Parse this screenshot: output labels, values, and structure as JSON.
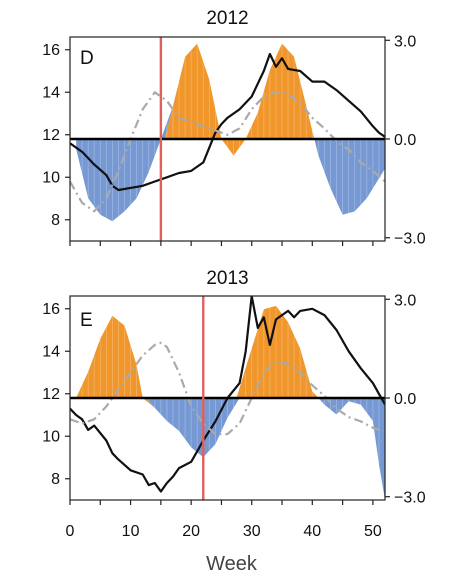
{
  "chart_data": [
    {
      "type": "area",
      "panel_label": "D",
      "title": "2012",
      "xlabel": "",
      "x_ticks": [],
      "xlim": [
        0,
        52
      ],
      "left_axis": {
        "ticks": [
          "8",
          "10",
          "12",
          "14",
          "16"
        ],
        "ylim": [
          7,
          16.6
        ]
      },
      "right_axis": {
        "ticks": [
          "−3.0",
          "0.0",
          "3.0"
        ],
        "ylim": [
          -3.1,
          3.1
        ]
      },
      "vertical_marker_week": 15,
      "anomaly_fill": {
        "positive_color": "#f0962a",
        "negative_color": "#7699d4",
        "x": [
          1,
          3,
          5,
          7,
          9,
          11,
          13,
          15,
          17,
          19,
          21,
          23,
          25,
          27,
          29,
          31,
          33,
          35,
          37,
          39,
          41,
          43,
          45,
          47,
          49,
          51,
          52
        ],
        "values": [
          -0.3,
          -1.8,
          -2.3,
          -2.5,
          -2.2,
          -1.8,
          -1.0,
          0.0,
          1.0,
          2.5,
          2.9,
          1.8,
          0.0,
          -0.5,
          0.0,
          0.8,
          2.1,
          2.9,
          2.5,
          1.0,
          -0.5,
          -1.5,
          -2.3,
          -2.2,
          -1.8,
          -1.2,
          -0.9
        ]
      },
      "series": [
        {
          "color": "#111111",
          "style": "solid",
          "x": [
            0,
            2,
            4,
            6,
            7,
            8,
            10,
            12,
            14,
            16,
            17,
            18,
            20,
            22,
            24,
            25,
            26,
            27,
            28,
            30,
            32,
            33,
            34,
            35,
            36,
            38,
            40,
            42,
            44,
            46,
            48,
            50,
            51,
            52
          ],
          "y": [
            11.6,
            11.2,
            10.6,
            10.1,
            9.6,
            9.4,
            9.5,
            9.6,
            9.8,
            10.0,
            10.1,
            10.2,
            10.3,
            10.7,
            12.1,
            12.5,
            12.8,
            13.0,
            13.2,
            13.8,
            15.0,
            15.8,
            15.2,
            15.6,
            15.1,
            15.0,
            14.5,
            14.5,
            14.1,
            13.6,
            13.1,
            12.4,
            12.1,
            11.9
          ]
        },
        {
          "color": "#aaaaaa",
          "style": "dash-dot",
          "x": [
            0,
            2,
            4,
            6,
            8,
            10,
            12,
            14,
            16,
            18,
            20,
            22,
            24,
            26,
            28,
            30,
            32,
            34,
            35,
            36,
            38,
            40,
            42,
            44,
            46,
            48,
            50,
            52
          ],
          "y": [
            9.8,
            8.8,
            8.4,
            9.0,
            10.3,
            11.8,
            13.2,
            14.0,
            13.6,
            12.8,
            12.6,
            12.4,
            12.2,
            12.0,
            12.3,
            13.2,
            13.8,
            14.0,
            14.0,
            13.9,
            13.5,
            12.8,
            12.3,
            11.7,
            11.3,
            10.7,
            10.3,
            9.8
          ]
        }
      ]
    },
    {
      "type": "area",
      "panel_label": "E",
      "title": "2013",
      "xlabel": "Week",
      "x_ticks": [
        "0",
        "10",
        "20",
        "30",
        "40",
        "50"
      ],
      "xlim": [
        0,
        52
      ],
      "left_axis": {
        "ticks": [
          "8",
          "10",
          "12",
          "14",
          "16"
        ],
        "ylim": [
          7,
          16.6
        ]
      },
      "right_axis": {
        "ticks": [
          "−3.0",
          "0.0",
          "3.0"
        ],
        "ylim": [
          -3.1,
          3.1
        ]
      },
      "vertical_marker_week": 22,
      "anomaly_fill": {
        "positive_color": "#f0962a",
        "negative_color": "#7699d4",
        "x": [
          1,
          3,
          5,
          7,
          9,
          11,
          12,
          14,
          16,
          18,
          20,
          22,
          24,
          26,
          28,
          30,
          32,
          34,
          36,
          38,
          40,
          42,
          44,
          46,
          48,
          50,
          51,
          52
        ],
        "values": [
          0.0,
          0.8,
          1.8,
          2.5,
          2.2,
          1.0,
          0.0,
          -0.3,
          -0.7,
          -1.0,
          -1.5,
          -1.8,
          -1.4,
          -0.6,
          0.0,
          1.5,
          2.7,
          2.8,
          2.3,
          1.5,
          0.2,
          -0.2,
          -0.5,
          -0.1,
          -0.2,
          -0.7,
          -2.0,
          -3.1
        ]
      },
      "series": [
        {
          "color": "#111111",
          "style": "solid",
          "x": [
            0,
            1,
            2,
            3,
            4,
            6,
            7,
            8,
            10,
            12,
            13,
            14,
            15,
            16,
            17,
            18,
            20,
            22,
            24,
            26,
            28,
            29,
            30,
            31,
            32,
            33,
            34,
            36,
            37,
            38,
            40,
            42,
            44,
            46,
            48,
            50,
            51,
            52
          ],
          "y": [
            11.3,
            11.0,
            10.8,
            10.3,
            10.5,
            9.8,
            9.2,
            8.9,
            8.4,
            8.2,
            7.7,
            7.8,
            7.4,
            7.8,
            8.1,
            8.5,
            8.8,
            9.8,
            10.7,
            11.8,
            12.5,
            14.0,
            16.6,
            15.1,
            15.6,
            14.3,
            15.5,
            15.9,
            15.6,
            15.9,
            16.0,
            15.7,
            15.0,
            14.0,
            13.2,
            12.5,
            12.0,
            11.5
          ]
        },
        {
          "color": "#aaaaaa",
          "style": "dash-dot",
          "x": [
            0,
            2,
            4,
            6,
            8,
            10,
            12,
            14,
            15,
            16,
            18,
            20,
            22,
            24,
            26,
            28,
            30,
            32,
            34,
            36,
            38,
            40,
            42,
            44,
            46,
            48,
            50,
            52
          ],
          "y": [
            10.8,
            10.6,
            10.8,
            11.4,
            12.2,
            13.0,
            13.8,
            14.3,
            14.4,
            14.2,
            13.0,
            11.4,
            10.6,
            10.1,
            10.1,
            10.6,
            11.8,
            13.0,
            13.5,
            13.4,
            13.0,
            12.4,
            11.9,
            11.3,
            10.9,
            10.7,
            10.4,
            10.2
          ]
        }
      ]
    }
  ]
}
